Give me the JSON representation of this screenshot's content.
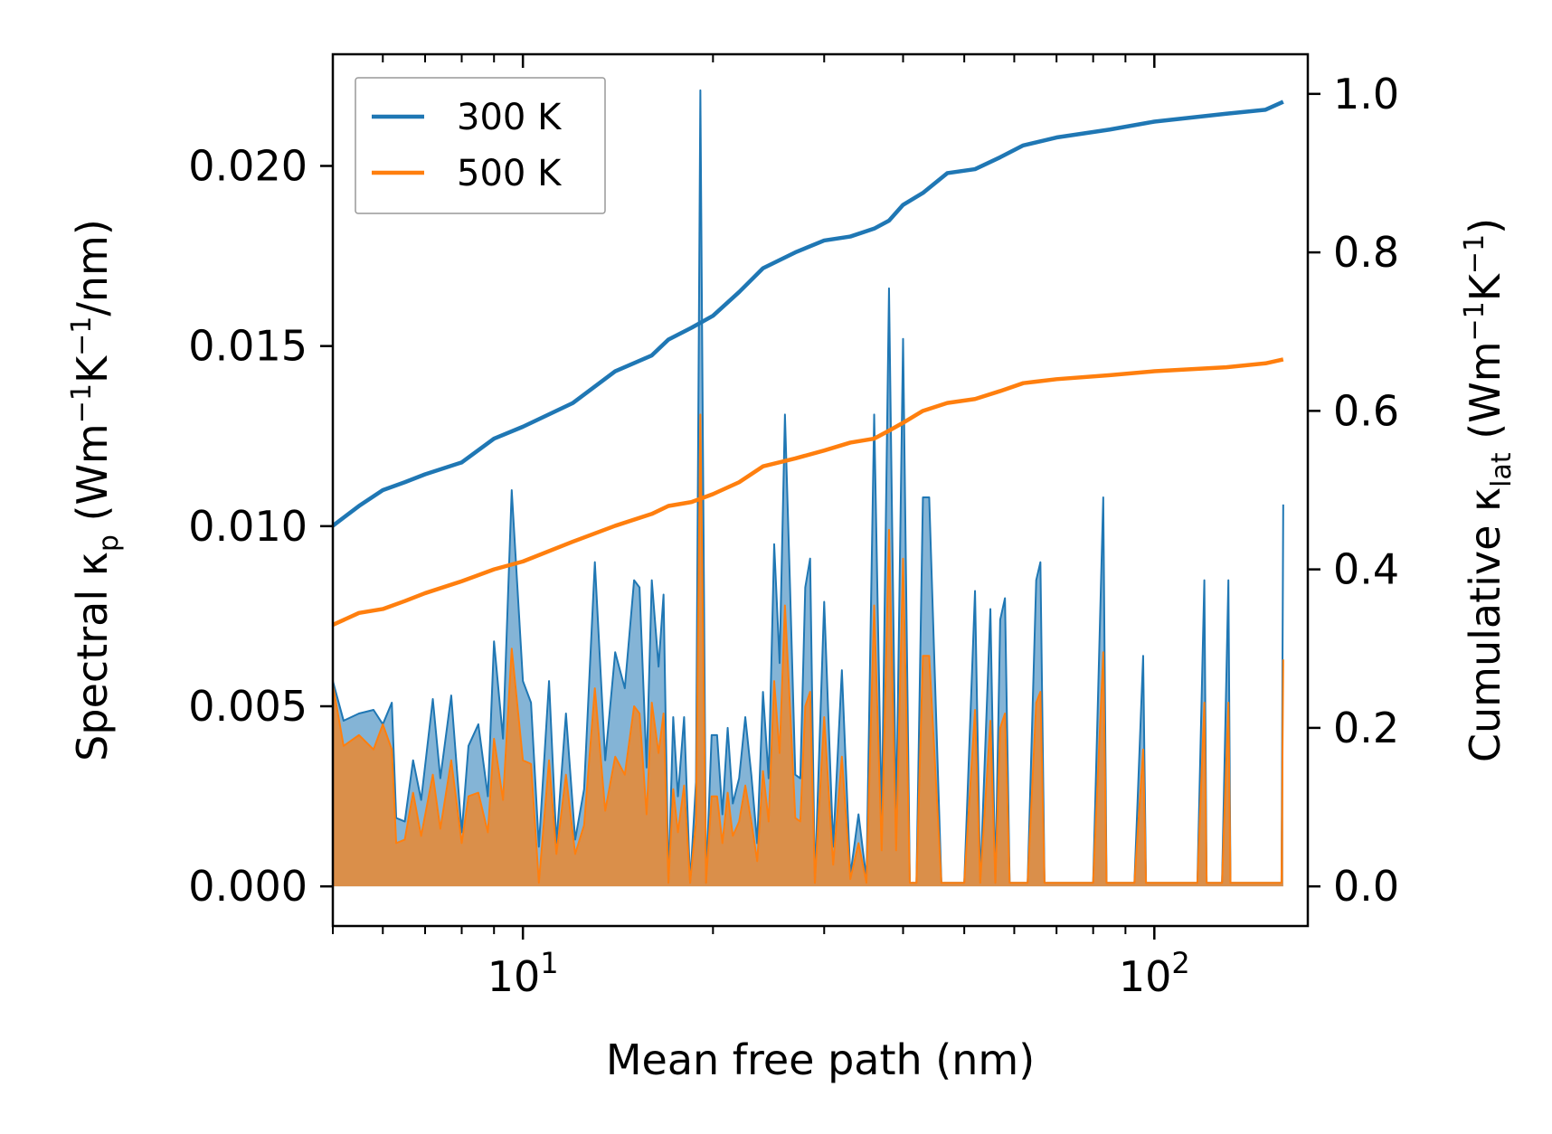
{
  "chart_data": {
    "type": "line",
    "xscale": "log",
    "xlabel": "Mean free path (nm)",
    "ylabel_left": {
      "main": "Spectral κ",
      "sub": "p",
      "unit_parts": [
        " (Wm",
        "−1",
        "K",
        "−1",
        "/nm)"
      ]
    },
    "ylabel_right": {
      "main": "Cumulative κ",
      "sub": "lat",
      "unit_parts": [
        " (Wm",
        "−1",
        "K",
        "−1",
        ")"
      ]
    },
    "xlim": [
      5.0,
      175.0
    ],
    "ylim_left": [
      -0.0011,
      0.0231
    ],
    "ylim_right": [
      -0.05,
      1.05
    ],
    "x_ticks": [
      {
        "value": 10,
        "base": "10",
        "exp": "1"
      },
      {
        "value": 100,
        "base": "10",
        "exp": "2"
      }
    ],
    "y_ticks_left": [
      {
        "value": 0.0,
        "label": "0.000"
      },
      {
        "value": 0.005,
        "label": "0.005"
      },
      {
        "value": 0.01,
        "label": "0.010"
      },
      {
        "value": 0.015,
        "label": "0.015"
      },
      {
        "value": 0.02,
        "label": "0.020"
      }
    ],
    "y_ticks_right": [
      {
        "value": 0.0,
        "label": "0.0"
      },
      {
        "value": 0.2,
        "label": "0.2"
      },
      {
        "value": 0.4,
        "label": "0.4"
      },
      {
        "value": 0.6,
        "label": "0.6"
      },
      {
        "value": 0.8,
        "label": "0.8"
      },
      {
        "value": 1.0,
        "label": "1.0"
      }
    ],
    "legend": {
      "location": "top-left",
      "entries": [
        {
          "label": "300 K",
          "color": "#1f77b4"
        },
        {
          "label": "500 K",
          "color": "#ff7f0e"
        }
      ]
    },
    "series": [
      {
        "name": "300 K",
        "color": "#1f77b4",
        "fill": "#1f77b4",
        "cumulative": [
          [
            5.0,
            0.455
          ],
          [
            5.5,
            0.48
          ],
          [
            6.0,
            0.5
          ],
          [
            6.5,
            0.51
          ],
          [
            7.0,
            0.52
          ],
          [
            8.0,
            0.535
          ],
          [
            9.0,
            0.565
          ],
          [
            10.0,
            0.58
          ],
          [
            12.0,
            0.61
          ],
          [
            14.0,
            0.65
          ],
          [
            16.0,
            0.67
          ],
          [
            17.0,
            0.69
          ],
          [
            18.5,
            0.705
          ],
          [
            20.0,
            0.72
          ],
          [
            22.0,
            0.75
          ],
          [
            24.0,
            0.78
          ],
          [
            27.0,
            0.8
          ],
          [
            30.0,
            0.815
          ],
          [
            33.0,
            0.82
          ],
          [
            36.0,
            0.83
          ],
          [
            38.0,
            0.84
          ],
          [
            40.0,
            0.86
          ],
          [
            43.0,
            0.875
          ],
          [
            47.0,
            0.9
          ],
          [
            52.0,
            0.905
          ],
          [
            57.0,
            0.92
          ],
          [
            62.0,
            0.935
          ],
          [
            70.0,
            0.945
          ],
          [
            85.0,
            0.955
          ],
          [
            100.0,
            0.965
          ],
          [
            130.0,
            0.975
          ],
          [
            150.0,
            0.98
          ],
          [
            160.0,
            0.99
          ]
        ],
        "spectral": [
          [
            5.0,
            0.0057
          ],
          [
            5.2,
            0.0046
          ],
          [
            5.5,
            0.0048
          ],
          [
            5.8,
            0.0049
          ],
          [
            6.0,
            0.0045
          ],
          [
            6.2,
            0.0051
          ],
          [
            6.3,
            0.0019
          ],
          [
            6.5,
            0.0018
          ],
          [
            6.7,
            0.0035
          ],
          [
            6.9,
            0.0024
          ],
          [
            7.2,
            0.0052
          ],
          [
            7.4,
            0.003
          ],
          [
            7.7,
            0.0053
          ],
          [
            8.0,
            0.0015
          ],
          [
            8.2,
            0.0039
          ],
          [
            8.5,
            0.0045
          ],
          [
            8.8,
            0.0025
          ],
          [
            9.0,
            0.0068
          ],
          [
            9.3,
            0.0041
          ],
          [
            9.6,
            0.011
          ],
          [
            10.0,
            0.0057
          ],
          [
            10.3,
            0.0051
          ],
          [
            10.6,
            0.0011
          ],
          [
            11.0,
            0.0057
          ],
          [
            11.3,
            0.0012
          ],
          [
            11.7,
            0.0048
          ],
          [
            12.1,
            0.0013
          ],
          [
            12.5,
            0.0027
          ],
          [
            13.0,
            0.009
          ],
          [
            13.5,
            0.0035
          ],
          [
            14.0,
            0.0065
          ],
          [
            14.5,
            0.0055
          ],
          [
            15.0,
            0.0085
          ],
          [
            15.3,
            0.0083
          ],
          [
            15.7,
            0.0033
          ],
          [
            16.0,
            0.0085
          ],
          [
            16.4,
            0.0061
          ],
          [
            16.7,
            0.0081
          ],
          [
            17.0,
            0.0001
          ],
          [
            17.3,
            0.0047
          ],
          [
            17.6,
            0.0025
          ],
          [
            18.0,
            0.0047
          ],
          [
            18.4,
            0.0001
          ],
          [
            18.8,
            0.0029
          ],
          [
            19.1,
            0.0221
          ],
          [
            19.5,
            0.0001
          ],
          [
            19.9,
            0.0042
          ],
          [
            20.3,
            0.0042
          ],
          [
            20.7,
            0.002
          ],
          [
            21.1,
            0.0044
          ],
          [
            21.5,
            0.0023
          ],
          [
            22.0,
            0.003
          ],
          [
            22.5,
            0.0047
          ],
          [
            23.0,
            0.0031
          ],
          [
            23.5,
            0.0012
          ],
          [
            24.0,
            0.0054
          ],
          [
            24.5,
            0.003
          ],
          [
            25.0,
            0.0095
          ],
          [
            25.5,
            0.0062
          ],
          [
            26.0,
            0.0131
          ],
          [
            26.5,
            0.0082
          ],
          [
            27.0,
            0.0031
          ],
          [
            27.5,
            0.003
          ],
          [
            28.0,
            0.0083
          ],
          [
            28.5,
            0.0091
          ],
          [
            29.0,
            0.0001
          ],
          [
            30.0,
            0.0079
          ],
          [
            31.0,
            0.0011
          ],
          [
            32.0,
            0.006
          ],
          [
            33.0,
            0.0003
          ],
          [
            34.0,
            0.002
          ],
          [
            35.0,
            0.0002
          ],
          [
            36.0,
            0.0131
          ],
          [
            37.0,
            0.0017
          ],
          [
            38.0,
            0.0166
          ],
          [
            39.0,
            0.0017
          ],
          [
            40.0,
            0.0152
          ],
          [
            41.0,
            0.0001
          ],
          [
            42.0,
            0.0001
          ],
          [
            43.0,
            0.0108
          ],
          [
            44.0,
            0.0108
          ],
          [
            46.0,
            0.0001
          ],
          [
            50.0,
            0.0001
          ],
          [
            52.0,
            0.0082
          ],
          [
            53.0,
            0.0001
          ],
          [
            55.0,
            0.0077
          ],
          [
            56.0,
            0.0001
          ],
          [
            57.0,
            0.0074
          ],
          [
            58.0,
            0.008
          ],
          [
            59.0,
            0.0001
          ],
          [
            63.0,
            0.0001
          ],
          [
            65.0,
            0.0085
          ],
          [
            66.0,
            0.009
          ],
          [
            67.0,
            0.0001
          ],
          [
            80.0,
            0.0001
          ],
          [
            83.0,
            0.0108
          ],
          [
            84.0,
            0.0001
          ],
          [
            93.0,
            0.0001
          ],
          [
            96.0,
            0.0064
          ],
          [
            97.0,
            0.0001
          ],
          [
            117.0,
            0.0001
          ],
          [
            120.0,
            0.0085
          ],
          [
            121.0,
            0.0001
          ],
          [
            128.0,
            0.0001
          ],
          [
            131.0,
            0.0085
          ],
          [
            132.0,
            0.0001
          ],
          [
            159.0,
            0.0001
          ],
          [
            160.0,
            0.0106
          ]
        ]
      },
      {
        "name": "500 K",
        "color": "#ff7f0e",
        "fill": "#ff7f0e",
        "cumulative": [
          [
            5.0,
            0.33
          ],
          [
            5.5,
            0.345
          ],
          [
            6.0,
            0.35
          ],
          [
            6.5,
            0.36
          ],
          [
            7.0,
            0.37
          ],
          [
            8.0,
            0.385
          ],
          [
            9.0,
            0.4
          ],
          [
            10.0,
            0.41
          ],
          [
            12.0,
            0.435
          ],
          [
            14.0,
            0.455
          ],
          [
            16.0,
            0.47
          ],
          [
            17.0,
            0.48
          ],
          [
            18.5,
            0.485
          ],
          [
            20.0,
            0.495
          ],
          [
            22.0,
            0.51
          ],
          [
            24.0,
            0.53
          ],
          [
            27.0,
            0.54
          ],
          [
            30.0,
            0.55
          ],
          [
            33.0,
            0.56
          ],
          [
            36.0,
            0.565
          ],
          [
            38.0,
            0.575
          ],
          [
            40.0,
            0.585
          ],
          [
            43.0,
            0.6
          ],
          [
            47.0,
            0.61
          ],
          [
            52.0,
            0.615
          ],
          [
            57.0,
            0.625
          ],
          [
            62.0,
            0.635
          ],
          [
            70.0,
            0.64
          ],
          [
            85.0,
            0.645
          ],
          [
            100.0,
            0.65
          ],
          [
            130.0,
            0.655
          ],
          [
            150.0,
            0.66
          ],
          [
            160.0,
            0.665
          ]
        ],
        "spectral": [
          [
            5.0,
            0.0056
          ],
          [
            5.2,
            0.0039
          ],
          [
            5.5,
            0.0042
          ],
          [
            5.8,
            0.0038
          ],
          [
            6.0,
            0.0045
          ],
          [
            6.2,
            0.0038
          ],
          [
            6.3,
            0.0012
          ],
          [
            6.5,
            0.0013
          ],
          [
            6.7,
            0.0026
          ],
          [
            6.9,
            0.0014
          ],
          [
            7.2,
            0.0031
          ],
          [
            7.4,
            0.0016
          ],
          [
            7.7,
            0.0035
          ],
          [
            8.0,
            0.0012
          ],
          [
            8.2,
            0.0025
          ],
          [
            8.5,
            0.0026
          ],
          [
            8.8,
            0.0015
          ],
          [
            9.0,
            0.0041
          ],
          [
            9.3,
            0.0024
          ],
          [
            9.6,
            0.0066
          ],
          [
            10.0,
            0.0035
          ],
          [
            10.3,
            0.0034
          ],
          [
            10.6,
            0.0001
          ],
          [
            11.0,
            0.0035
          ],
          [
            11.3,
            0.0009
          ],
          [
            11.7,
            0.0031
          ],
          [
            12.1,
            0.0009
          ],
          [
            12.5,
            0.0017
          ],
          [
            13.0,
            0.0055
          ],
          [
            13.5,
            0.0021
          ],
          [
            14.0,
            0.0036
          ],
          [
            14.5,
            0.0031
          ],
          [
            15.0,
            0.005
          ],
          [
            15.3,
            0.0048
          ],
          [
            15.7,
            0.002
          ],
          [
            16.0,
            0.0051
          ],
          [
            16.4,
            0.0037
          ],
          [
            16.7,
            0.0048
          ],
          [
            17.0,
            0.0001
          ],
          [
            17.3,
            0.0027
          ],
          [
            17.6,
            0.0015
          ],
          [
            18.0,
            0.0028
          ],
          [
            18.4,
            0.0001
          ],
          [
            18.8,
            0.0018
          ],
          [
            19.1,
            0.0131
          ],
          [
            19.5,
            0.0001
          ],
          [
            19.9,
            0.0025
          ],
          [
            20.3,
            0.0025
          ],
          [
            20.7,
            0.0012
          ],
          [
            21.1,
            0.0026
          ],
          [
            21.5,
            0.0014
          ],
          [
            22.0,
            0.0018
          ],
          [
            22.5,
            0.0028
          ],
          [
            23.0,
            0.0018
          ],
          [
            23.5,
            0.0007
          ],
          [
            24.0,
            0.0032
          ],
          [
            24.5,
            0.0018
          ],
          [
            25.0,
            0.0057
          ],
          [
            25.5,
            0.0037
          ],
          [
            26.0,
            0.0078
          ],
          [
            26.5,
            0.0049
          ],
          [
            27.0,
            0.0019
          ],
          [
            27.5,
            0.0018
          ],
          [
            28.0,
            0.005
          ],
          [
            28.5,
            0.0054
          ],
          [
            29.0,
            0.0001
          ],
          [
            30.0,
            0.0047
          ],
          [
            31.0,
            0.0006
          ],
          [
            32.0,
            0.0036
          ],
          [
            33.0,
            0.0002
          ],
          [
            34.0,
            0.0012
          ],
          [
            35.0,
            0.0001
          ],
          [
            36.0,
            0.0078
          ],
          [
            37.0,
            0.001
          ],
          [
            38.0,
            0.0099
          ],
          [
            39.0,
            0.001
          ],
          [
            40.0,
            0.0091
          ],
          [
            41.0,
            0.0001
          ],
          [
            42.0,
            0.0001
          ],
          [
            43.0,
            0.0064
          ],
          [
            44.0,
            0.0064
          ],
          [
            46.0,
            0.0001
          ],
          [
            50.0,
            0.0001
          ],
          [
            52.0,
            0.0049
          ],
          [
            53.0,
            0.0001
          ],
          [
            55.0,
            0.0046
          ],
          [
            56.0,
            0.0001
          ],
          [
            57.0,
            0.0044
          ],
          [
            58.0,
            0.0048
          ],
          [
            59.0,
            0.0001
          ],
          [
            63.0,
            0.0001
          ],
          [
            65.0,
            0.0051
          ],
          [
            66.0,
            0.0054
          ],
          [
            67.0,
            0.0001
          ],
          [
            80.0,
            0.0001
          ],
          [
            83.0,
            0.0065
          ],
          [
            84.0,
            0.0001
          ],
          [
            93.0,
            0.0001
          ],
          [
            96.0,
            0.0038
          ],
          [
            97.0,
            0.0001
          ],
          [
            117.0,
            0.0001
          ],
          [
            120.0,
            0.0051
          ],
          [
            121.0,
            0.0001
          ],
          [
            128.0,
            0.0001
          ],
          [
            131.0,
            0.0051
          ],
          [
            132.0,
            0.0001
          ],
          [
            159.0,
            0.0001
          ],
          [
            160.0,
            0.0063
          ]
        ]
      }
    ]
  }
}
